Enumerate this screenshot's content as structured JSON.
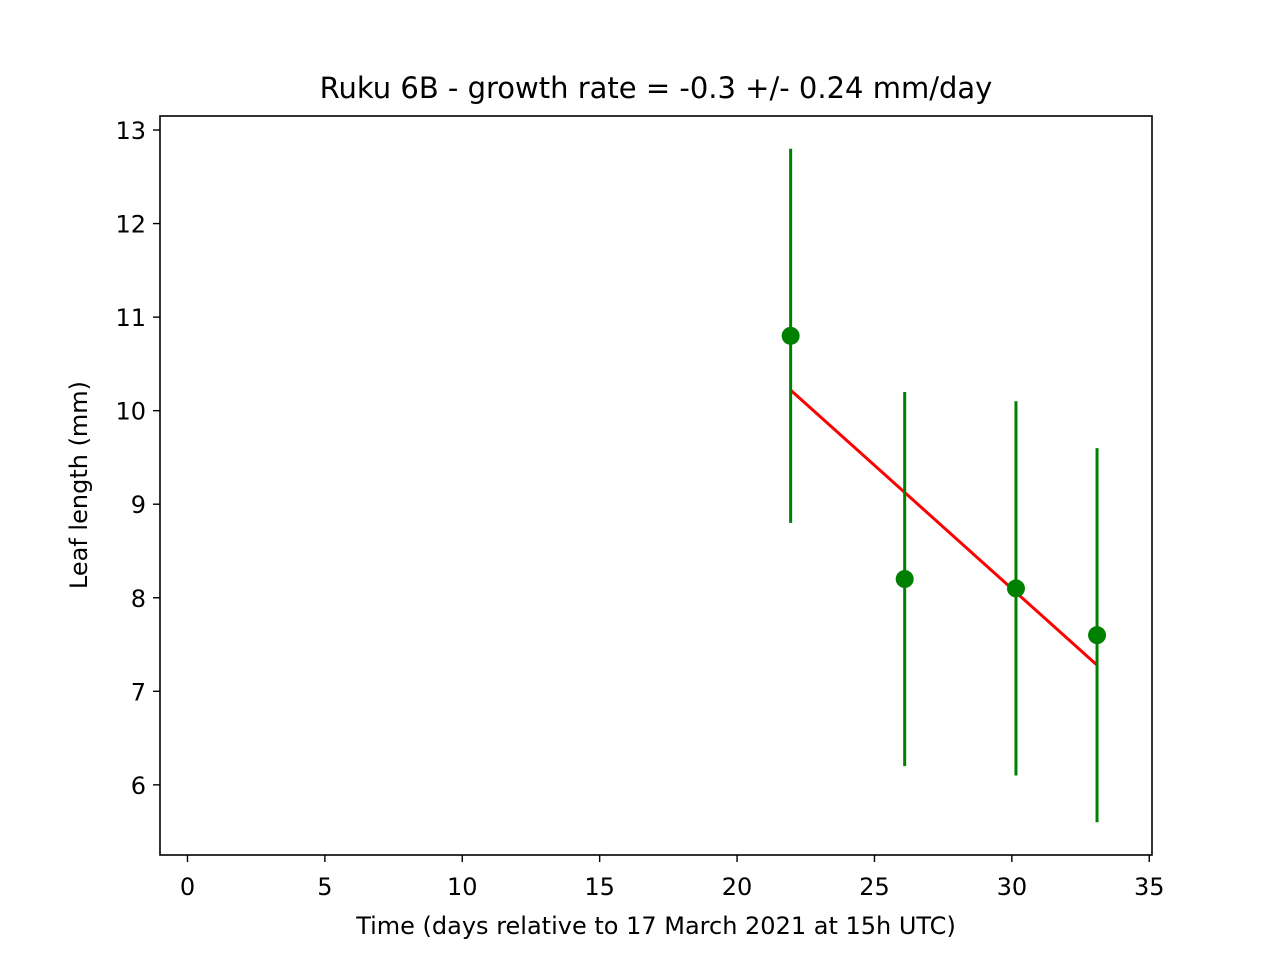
{
  "chart_data": {
    "type": "scatter",
    "title": "Ruku 6B  -  growth rate = -0.3 +/- 0.24 mm/day",
    "xlabel": "Time (days relative to 17 March 2021 at 15h UTC)",
    "ylabel": "Leaf length (mm)",
    "xlim": [
      -1.0,
      35.1
    ],
    "ylim": [
      5.25,
      13.15
    ],
    "xticks": [
      0,
      5,
      10,
      15,
      20,
      25,
      30,
      35
    ],
    "yticks": [
      6,
      7,
      8,
      9,
      10,
      11,
      12,
      13
    ],
    "grid": false,
    "points": {
      "x": [
        21.95,
        26.1,
        30.15,
        33.1
      ],
      "y": [
        10.8,
        8.2,
        8.1,
        7.6
      ],
      "yerr": [
        2.0,
        2.0,
        2.0,
        2.0
      ],
      "color": "#008000"
    },
    "fit_line": {
      "x": [
        21.95,
        33.1
      ],
      "y": [
        10.22,
        7.28
      ],
      "color": "#ff0000"
    }
  }
}
